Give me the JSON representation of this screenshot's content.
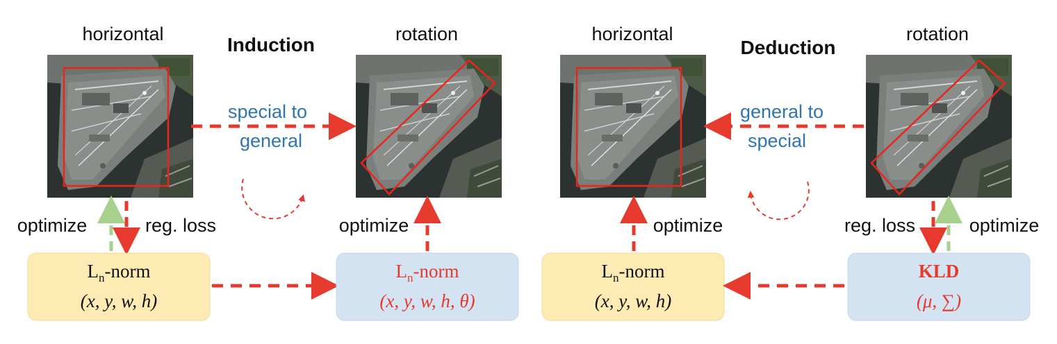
{
  "colors": {
    "arrow_red": "#e63a2e",
    "arrow_green": "#a9d18e",
    "box_yellow_fill": "#fdebb3",
    "box_blue_fill": "#d3e3f2",
    "text_blue": "#2e75b6",
    "text_red": "#e63a2e",
    "bbox_red": "#e8261e"
  },
  "induction": {
    "title": "Induction",
    "left_label": "horizontal",
    "right_label": "rotation",
    "transfer_text": [
      "special to",
      "general"
    ],
    "optimize_left": "optimize",
    "reg_loss": "reg. loss",
    "optimize_right": "optimize",
    "box_left": {
      "main": "L",
      "sub": "n",
      "suffix": "-norm",
      "params": "(x, y, w, h)"
    },
    "box_right": {
      "main": "L",
      "sub": "n",
      "suffix": "-norm",
      "params": "(x, y, w, h, θ)"
    }
  },
  "deduction": {
    "title": "Deduction",
    "left_label": "horizontal",
    "right_label": "rotation",
    "transfer_text": [
      "general to",
      "special"
    ],
    "optimize_left": "optimize",
    "reg_loss": "reg. loss",
    "optimize_right": "optimize",
    "box_left": {
      "main": "L",
      "sub": "n",
      "suffix": "-norm",
      "params": "(x, y, w, h)"
    },
    "box_right": {
      "main": "KLD",
      "params": "(μ, ∑)"
    }
  }
}
